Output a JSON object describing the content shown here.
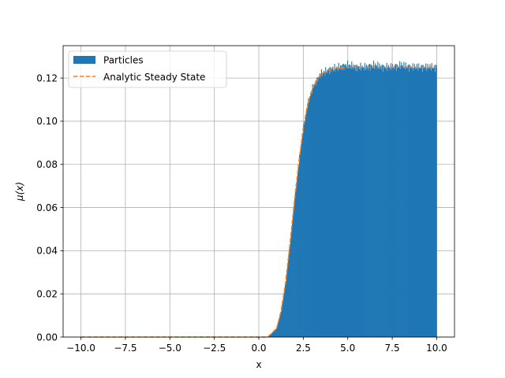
{
  "chart_data": {
    "type": "bar",
    "title": "",
    "xlabel": "x",
    "ylabel": "μ(x)",
    "xlim": [
      -11,
      11
    ],
    "ylim": [
      0.0,
      0.135
    ],
    "xticks": [
      -10.0,
      -7.5,
      -5.0,
      -2.5,
      0.0,
      2.5,
      5.0,
      7.5,
      10.0
    ],
    "xtick_labels": [
      "−10.0",
      "−7.5",
      "−5.0",
      "−2.5",
      "0.0",
      "2.5",
      "5.0",
      "7.5",
      "10.0"
    ],
    "yticks": [
      0.0,
      0.02,
      0.04,
      0.06,
      0.08,
      0.1,
      0.12
    ],
    "ytick_labels": [
      "0.00",
      "0.02",
      "0.04",
      "0.06",
      "0.08",
      "0.10",
      "0.12"
    ],
    "grid": true,
    "legend_position": "top-left",
    "series": [
      {
        "name": "Particles",
        "kind": "histogram",
        "color": "#1f77b4",
        "x": [
          -10.0,
          0.5,
          1.0,
          1.25,
          1.5,
          1.75,
          2.0,
          2.25,
          2.5,
          2.75,
          3.0,
          3.25,
          3.5,
          3.75,
          4.0,
          4.5,
          5.0,
          5.5,
          6.0,
          6.5,
          7.0,
          7.5,
          8.0,
          8.5,
          9.0,
          9.5,
          10.0
        ],
        "y": [
          0.0,
          0.0,
          0.004,
          0.012,
          0.025,
          0.043,
          0.063,
          0.081,
          0.097,
          0.108,
          0.115,
          0.119,
          0.122,
          0.123,
          0.124,
          0.125,
          0.126,
          0.125,
          0.125,
          0.126,
          0.125,
          0.125,
          0.126,
          0.125,
          0.125,
          0.125,
          0.125
        ]
      },
      {
        "name": "Analytic Steady State",
        "kind": "line",
        "color": "#ff7f0e",
        "style": "dashed",
        "x": [
          -10.0,
          0.5,
          1.0,
          1.25,
          1.5,
          1.75,
          2.0,
          2.25,
          2.5,
          2.75,
          3.0,
          3.25,
          3.5,
          3.75,
          4.0,
          4.5,
          5.0,
          6.0,
          7.0,
          8.0,
          9.0,
          10.0
        ],
        "y": [
          0.0,
          0.0,
          0.004,
          0.012,
          0.025,
          0.043,
          0.063,
          0.081,
          0.097,
          0.108,
          0.115,
          0.119,
          0.122,
          0.123,
          0.124,
          0.1245,
          0.125,
          0.125,
          0.125,
          0.125,
          0.125,
          0.125
        ]
      }
    ]
  }
}
